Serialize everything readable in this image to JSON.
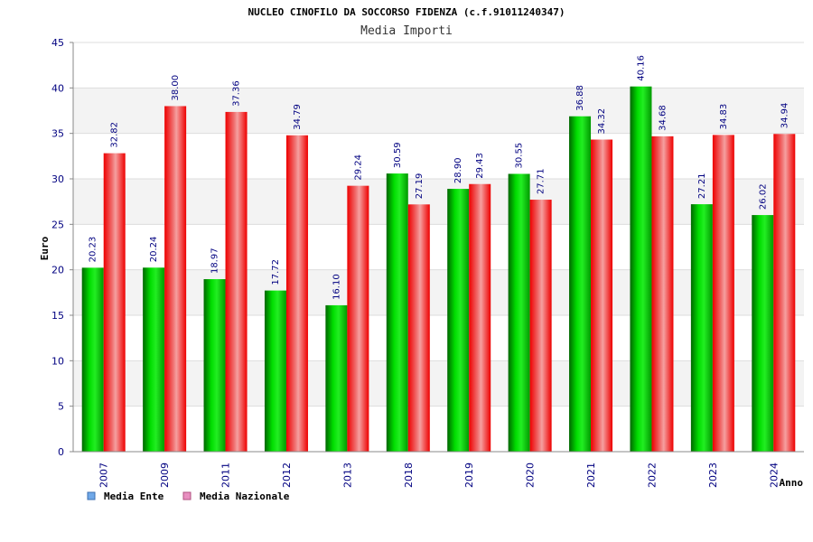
{
  "chart_data": {
    "type": "bar",
    "title": "NUCLEO CINOFILO DA SOCCORSO FIDENZA (c.f.91011240347)",
    "subtitle": "Media Importi",
    "xlabel": "Anno",
    "ylabel": "Euro",
    "ylim": [
      0,
      45
    ],
    "yticks": [
      0,
      5,
      10,
      15,
      20,
      25,
      30,
      35,
      40,
      45
    ],
    "grid": true,
    "legend_position": "bottom-left",
    "categories": [
      "2007",
      "2009",
      "2011",
      "2012",
      "2013",
      "2018",
      "2019",
      "2020",
      "2021",
      "2022",
      "2023",
      "2024"
    ],
    "series": [
      {
        "name": "Media Ente",
        "color": "#00cc00",
        "legend_color": "#6fa8e8",
        "values": [
          20.23,
          20.24,
          18.97,
          17.72,
          16.1,
          30.59,
          28.9,
          30.55,
          36.88,
          40.16,
          27.21,
          26.02
        ],
        "labels": [
          "20.23",
          "20.24",
          "18.97",
          "17.72",
          "16.10",
          "30.59",
          "28.90",
          "30.55",
          "36.88",
          "40.16",
          "27.21",
          "26.02"
        ]
      },
      {
        "name": "Media Nazionale",
        "color": "#ee1111",
        "legend_color": "#e88fc0",
        "values": [
          32.82,
          38.0,
          37.36,
          34.79,
          29.24,
          27.19,
          29.43,
          27.71,
          34.32,
          34.68,
          34.83,
          34.94
        ],
        "labels": [
          "32.82",
          "38.00",
          "37.36",
          "34.79",
          "29.24",
          "27.19",
          "29.43",
          "27.71",
          "34.32",
          "34.68",
          "34.83",
          "34.94"
        ]
      }
    ]
  }
}
